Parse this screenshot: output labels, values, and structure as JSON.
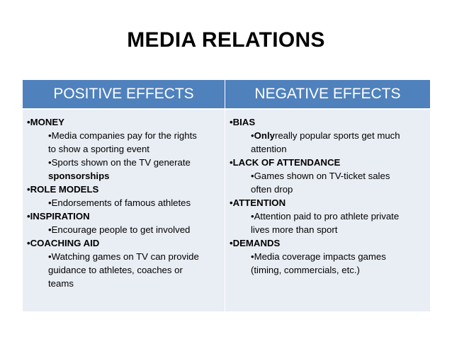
{
  "title": "MEDIA RELATIONS",
  "table": {
    "headers": {
      "positive": "POSITIVE EFFECTS",
      "negative": "NEGATIVE EFFECTS"
    },
    "positive": [
      {
        "heading": "•MONEY",
        "items": [
          {
            "lines": [
              "•Media companies pay for the rights",
              "to show a sporting event"
            ]
          },
          {
            "lines": [
              "•Sports shown on the TV generate"
            ],
            "bold_line": "sponsorships"
          }
        ]
      },
      {
        "heading": "•ROLE MODELS",
        "items": [
          {
            "lines": [
              "•Endorsements of famous athletes"
            ]
          }
        ]
      },
      {
        "heading": "•INSPIRATION",
        "items": [
          {
            "lines": [
              "•Encourage people to get involved"
            ]
          }
        ]
      },
      {
        "heading": "•COACHING AID",
        "items": [
          {
            "lines": [
              "•Watching games on TV can provide",
              "guidance to athletes, coaches or",
              "teams"
            ]
          }
        ]
      }
    ],
    "negative": [
      {
        "heading": "•BIAS",
        "items": [
          {
            "bullet": "•",
            "bold_word": "Only",
            "rest": "really popular sports get much",
            "lines": [
              "attention"
            ]
          }
        ]
      },
      {
        "heading": "•LACK OF ATTENDANCE",
        "items": [
          {
            "lines": [
              "•Games shown on TV-ticket sales",
              "often drop"
            ]
          }
        ]
      },
      {
        "heading": "•ATTENTION",
        "items": [
          {
            "lines": [
              "•Attention paid to pro athlete private",
              "lives more than sport"
            ]
          }
        ]
      },
      {
        "heading": "•DEMANDS",
        "items": [
          {
            "lines": [
              "•Media coverage impacts games",
              "(timing, commercials, etc.)"
            ]
          }
        ]
      }
    ]
  }
}
